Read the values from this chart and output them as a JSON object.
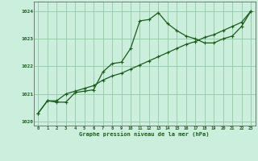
{
  "title": "Graphe pression niveau de la mer (hPa)",
  "background_color": "#cceedd",
  "grid_color": "#99ccaa",
  "line_color": "#1a5c1a",
  "marker_color": "#1a5c1a",
  "xlim": [
    -0.5,
    23.5
  ],
  "ylim": [
    1019.85,
    1024.35
  ],
  "yticks": [
    1020,
    1021,
    1022,
    1023,
    1024
  ],
  "xticks": [
    0,
    1,
    2,
    3,
    4,
    5,
    6,
    7,
    8,
    9,
    10,
    11,
    12,
    13,
    14,
    15,
    16,
    17,
    18,
    19,
    20,
    21,
    22,
    23
  ],
  "series1_x": [
    0,
    1,
    2,
    3,
    4,
    5,
    6,
    7,
    8,
    9,
    10,
    11,
    12,
    13,
    14,
    15,
    16,
    17,
    18,
    19,
    20,
    21,
    22,
    23
  ],
  "series1_y": [
    1020.3,
    1020.75,
    1020.7,
    1020.7,
    1021.05,
    1021.1,
    1021.15,
    1021.8,
    1022.1,
    1022.15,
    1022.65,
    1023.65,
    1023.7,
    1023.95,
    1023.55,
    1023.3,
    1023.1,
    1023.0,
    1022.85,
    1022.85,
    1023.0,
    1023.1,
    1023.45,
    1024.0
  ],
  "series2_x": [
    0,
    1,
    2,
    3,
    4,
    5,
    6,
    7,
    8,
    9,
    10,
    11,
    12,
    13,
    14,
    15,
    16,
    17,
    18,
    19,
    20,
    21,
    22,
    23
  ],
  "series2_y": [
    1020.3,
    1020.75,
    1020.75,
    1021.0,
    1021.1,
    1021.2,
    1021.3,
    1021.5,
    1021.65,
    1021.75,
    1021.9,
    1022.05,
    1022.2,
    1022.35,
    1022.5,
    1022.65,
    1022.8,
    1022.9,
    1023.05,
    1023.15,
    1023.3,
    1023.45,
    1023.6,
    1024.0
  ]
}
